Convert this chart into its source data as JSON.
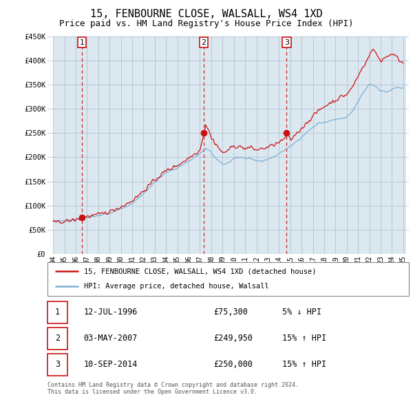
{
  "title": "15, FENBOURNE CLOSE, WALSALL, WS4 1XD",
  "subtitle": "Price paid vs. HM Land Registry's House Price Index (HPI)",
  "title_fontsize": 11,
  "subtitle_fontsize": 9,
  "ylim": [
    0,
    450000
  ],
  "yticks": [
    0,
    50000,
    100000,
    150000,
    200000,
    250000,
    300000,
    350000,
    400000,
    450000
  ],
  "ytick_labels": [
    "£0",
    "£50K",
    "£100K",
    "£150K",
    "£200K",
    "£250K",
    "£300K",
    "£350K",
    "£400K",
    "£450K"
  ],
  "xlim_min": 1994.0,
  "xlim_max": 2025.5,
  "xticks": [
    1994,
    1995,
    1996,
    1997,
    1998,
    1999,
    2000,
    2001,
    2002,
    2003,
    2004,
    2005,
    2006,
    2007,
    2008,
    2009,
    2010,
    2011,
    2012,
    2013,
    2014,
    2015,
    2016,
    2017,
    2018,
    2019,
    2020,
    2021,
    2022,
    2023,
    2024,
    2025
  ],
  "hpi_color": "#7aafd4",
  "price_color": "#cc1111",
  "sale_marker_color": "#cc1111",
  "sale_vline_color": "#cc1111",
  "label_box_edge_color": "#cc1111",
  "grid_color": "#aab8cc",
  "plot_bg": "#dce8f0",
  "sale_points": [
    {
      "year": 1996.54,
      "value": 75300,
      "label": "1"
    },
    {
      "year": 2007.34,
      "value": 249950,
      "label": "2"
    },
    {
      "year": 2014.67,
      "value": 250000,
      "label": "3"
    }
  ],
  "legend_entries": [
    "15, FENBOURNE CLOSE, WALSALL, WS4 1XD (detached house)",
    "HPI: Average price, detached house, Walsall"
  ],
  "table_rows": [
    [
      "1",
      "12-JUL-1996",
      "£75,300",
      "5% ↓ HPI"
    ],
    [
      "2",
      "03-MAY-2007",
      "£249,950",
      "15% ↑ HPI"
    ],
    [
      "3",
      "10-SEP-2014",
      "£250,000",
      "15% ↑ HPI"
    ]
  ],
  "footer": "Contains HM Land Registry data © Crown copyright and database right 2024.\nThis data is licensed under the Open Government Licence v3.0."
}
